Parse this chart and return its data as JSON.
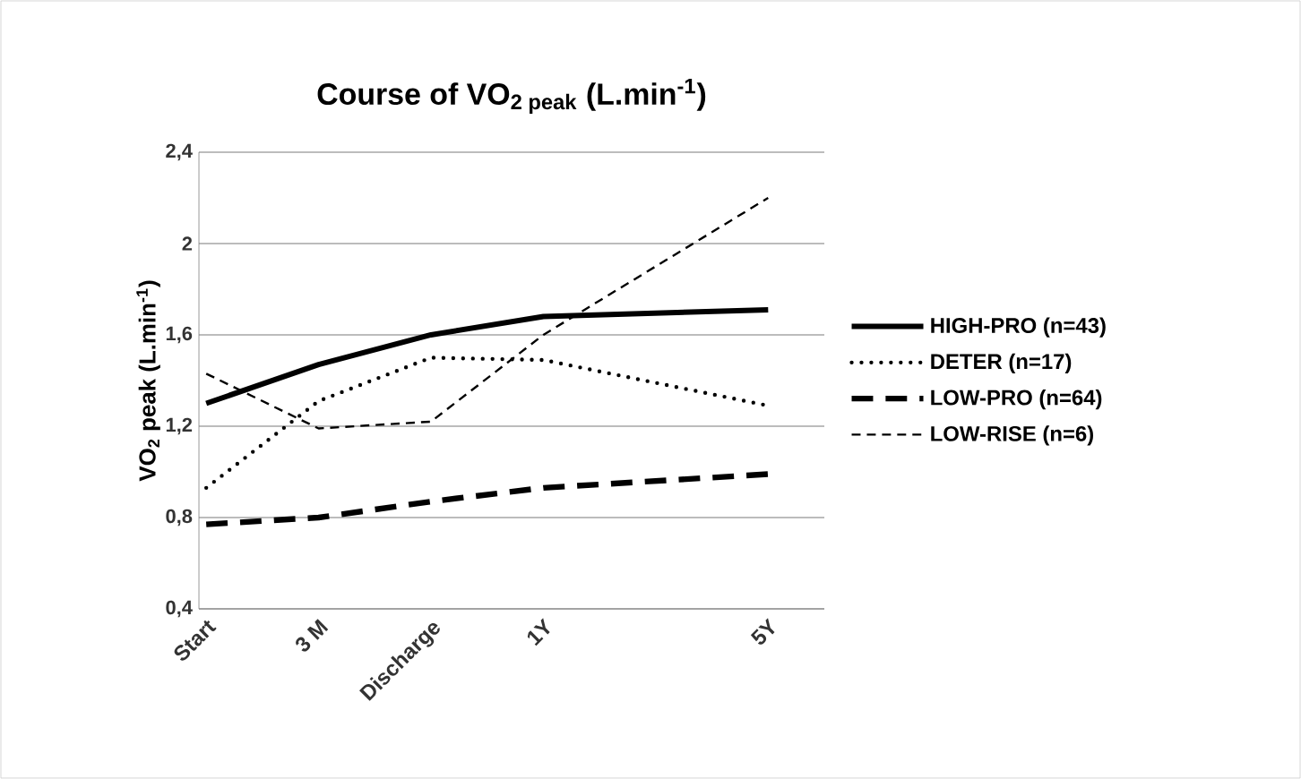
{
  "chart_data": {
    "type": "line",
    "title": "Course of VO$_{2 peak}$ (L.min$^{-1}$)",
    "ylabel": "VO$_{2}$ peak (L.min$^{-1}$)",
    "categories": [
      "Start",
      "3 M",
      "Discharge",
      "1Y",
      null,
      "5Y"
    ],
    "series": [
      {
        "name": "HIGH-PRO (n=43)",
        "color": "#000000",
        "line_style": "solid",
        "values": [
          1.3,
          1.47,
          1.6,
          1.68,
          null,
          1.71
        ]
      },
      {
        "name": "DETER (n=17)",
        "color": "#000000",
        "line_style": "dotted",
        "values": [
          0.93,
          1.31,
          1.5,
          1.49,
          null,
          1.29
        ]
      },
      {
        "name": "LOW-PRO (n=64)",
        "color": "#000000",
        "line_style": "dashed",
        "values": [
          0.77,
          0.8,
          0.87,
          0.93,
          null,
          0.99
        ]
      },
      {
        "name": "LOW-RISE (n=6)",
        "color": "#000000",
        "line_style": "dashed",
        "values": [
          1.43,
          1.19,
          1.22,
          1.6,
          null,
          2.2
        ]
      }
    ],
    "ylim": [
      0.4,
      2.4
    ],
    "yticks": [
      {
        "value": 0.4,
        "label": "0,4"
      },
      {
        "value": 0.8,
        "label": "0,8"
      },
      {
        "value": 1.2,
        "label": "1,2"
      },
      {
        "value": 1.6,
        "label": "1,6"
      },
      2,
      {
        "value": 2.4,
        "label": "2,4"
      }
    ],
    "grid": "y",
    "legend": "right"
  }
}
